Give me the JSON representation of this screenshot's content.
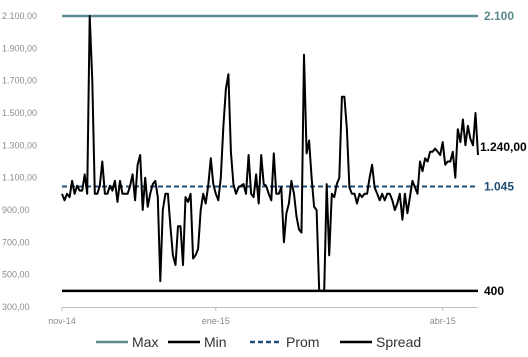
{
  "chart_data": {
    "type": "line",
    "ylim": [
      300,
      2100
    ],
    "yticks": [
      300,
      500,
      700,
      900,
      1100,
      1300,
      1500,
      1700,
      1900,
      2100
    ],
    "ytick_labels": [
      "300,00",
      "500,00",
      "700,00",
      "900,00",
      "1.100,00",
      "1.300,00",
      "1.500,00",
      "1.700,00",
      "1.900,00",
      "2.100,00"
    ],
    "x_ticks": [
      {
        "label": "nov-14",
        "index": 0
      },
      {
        "label": "ene-15",
        "index": 61
      },
      {
        "label": "abr-15",
        "index": 151
      }
    ],
    "reference_lines": [
      {
        "name": "Max",
        "value": 2100,
        "label": "2.100",
        "color": "#5b8a8f"
      },
      {
        "name": "Min",
        "value": 400,
        "label": "400",
        "color": "#000000"
      },
      {
        "name": "Prom",
        "value": 1045,
        "label": "1.045",
        "color": "#1f4e79"
      }
    ],
    "last_value_label": "1.240,00",
    "series": [
      {
        "name": "Spread",
        "color": "#000000",
        "values": [
          1000,
          960,
          1000,
          980,
          1080,
          1000,
          1050,
          1020,
          1020,
          1120,
          1000,
          2100,
          1700,
          1000,
          1000,
          1050,
          1200,
          1000,
          1000,
          1050,
          1020,
          1080,
          950,
          1080,
          1000,
          1000,
          1000,
          1050,
          1120,
          960,
          1180,
          1240,
          900,
          1100,
          920,
          1000,
          1060,
          1080,
          980,
          460,
          900,
          1000,
          1000,
          800,
          620,
          560,
          800,
          800,
          560,
          980,
          950,
          1000,
          600,
          620,
          660,
          900,
          1000,
          940,
          1050,
          1220,
          1060,
          1000,
          960,
          1100,
          1420,
          1650,
          1740,
          1260,
          1060,
          1000,
          1040,
          1050,
          1060,
          1000,
          1240,
          1000,
          980,
          1120,
          940,
          1240,
          1060,
          1050,
          1000,
          960,
          1250,
          1000,
          1000,
          1040,
          700,
          880,
          940,
          1080,
          1000,
          860,
          780,
          760,
          1860,
          1250,
          1330,
          1100,
          920,
          900,
          400,
          400,
          400,
          1060,
          620,
          1000,
          980,
          1060,
          1100,
          1600,
          1600,
          1400,
          1040,
          1000,
          1000,
          940,
          1000,
          980,
          1000,
          1000,
          1100,
          1180,
          1040,
          1000,
          960,
          1000,
          960,
          1000,
          1000,
          960,
          900,
          940,
          1000,
          840,
          1000,
          880,
          980,
          1080,
          1040,
          1000,
          1200,
          1140,
          1220,
          1200,
          1260,
          1260,
          1280,
          1260,
          1240,
          1320,
          1180,
          1200,
          1200,
          1260,
          1100,
          1400,
          1320,
          1460,
          1300,
          1420,
          1340,
          1300,
          1500,
          1240
        ]
      }
    ],
    "legend": {
      "position": "bottom",
      "items": [
        {
          "name": "Max",
          "color": "#5b8a8f",
          "dash": false
        },
        {
          "name": "Min",
          "color": "#000000",
          "dash": false
        },
        {
          "name": "Prom",
          "color": "#1f4e79",
          "dash": true
        },
        {
          "name": "Spread",
          "color": "#000000",
          "dash": false
        }
      ]
    }
  }
}
